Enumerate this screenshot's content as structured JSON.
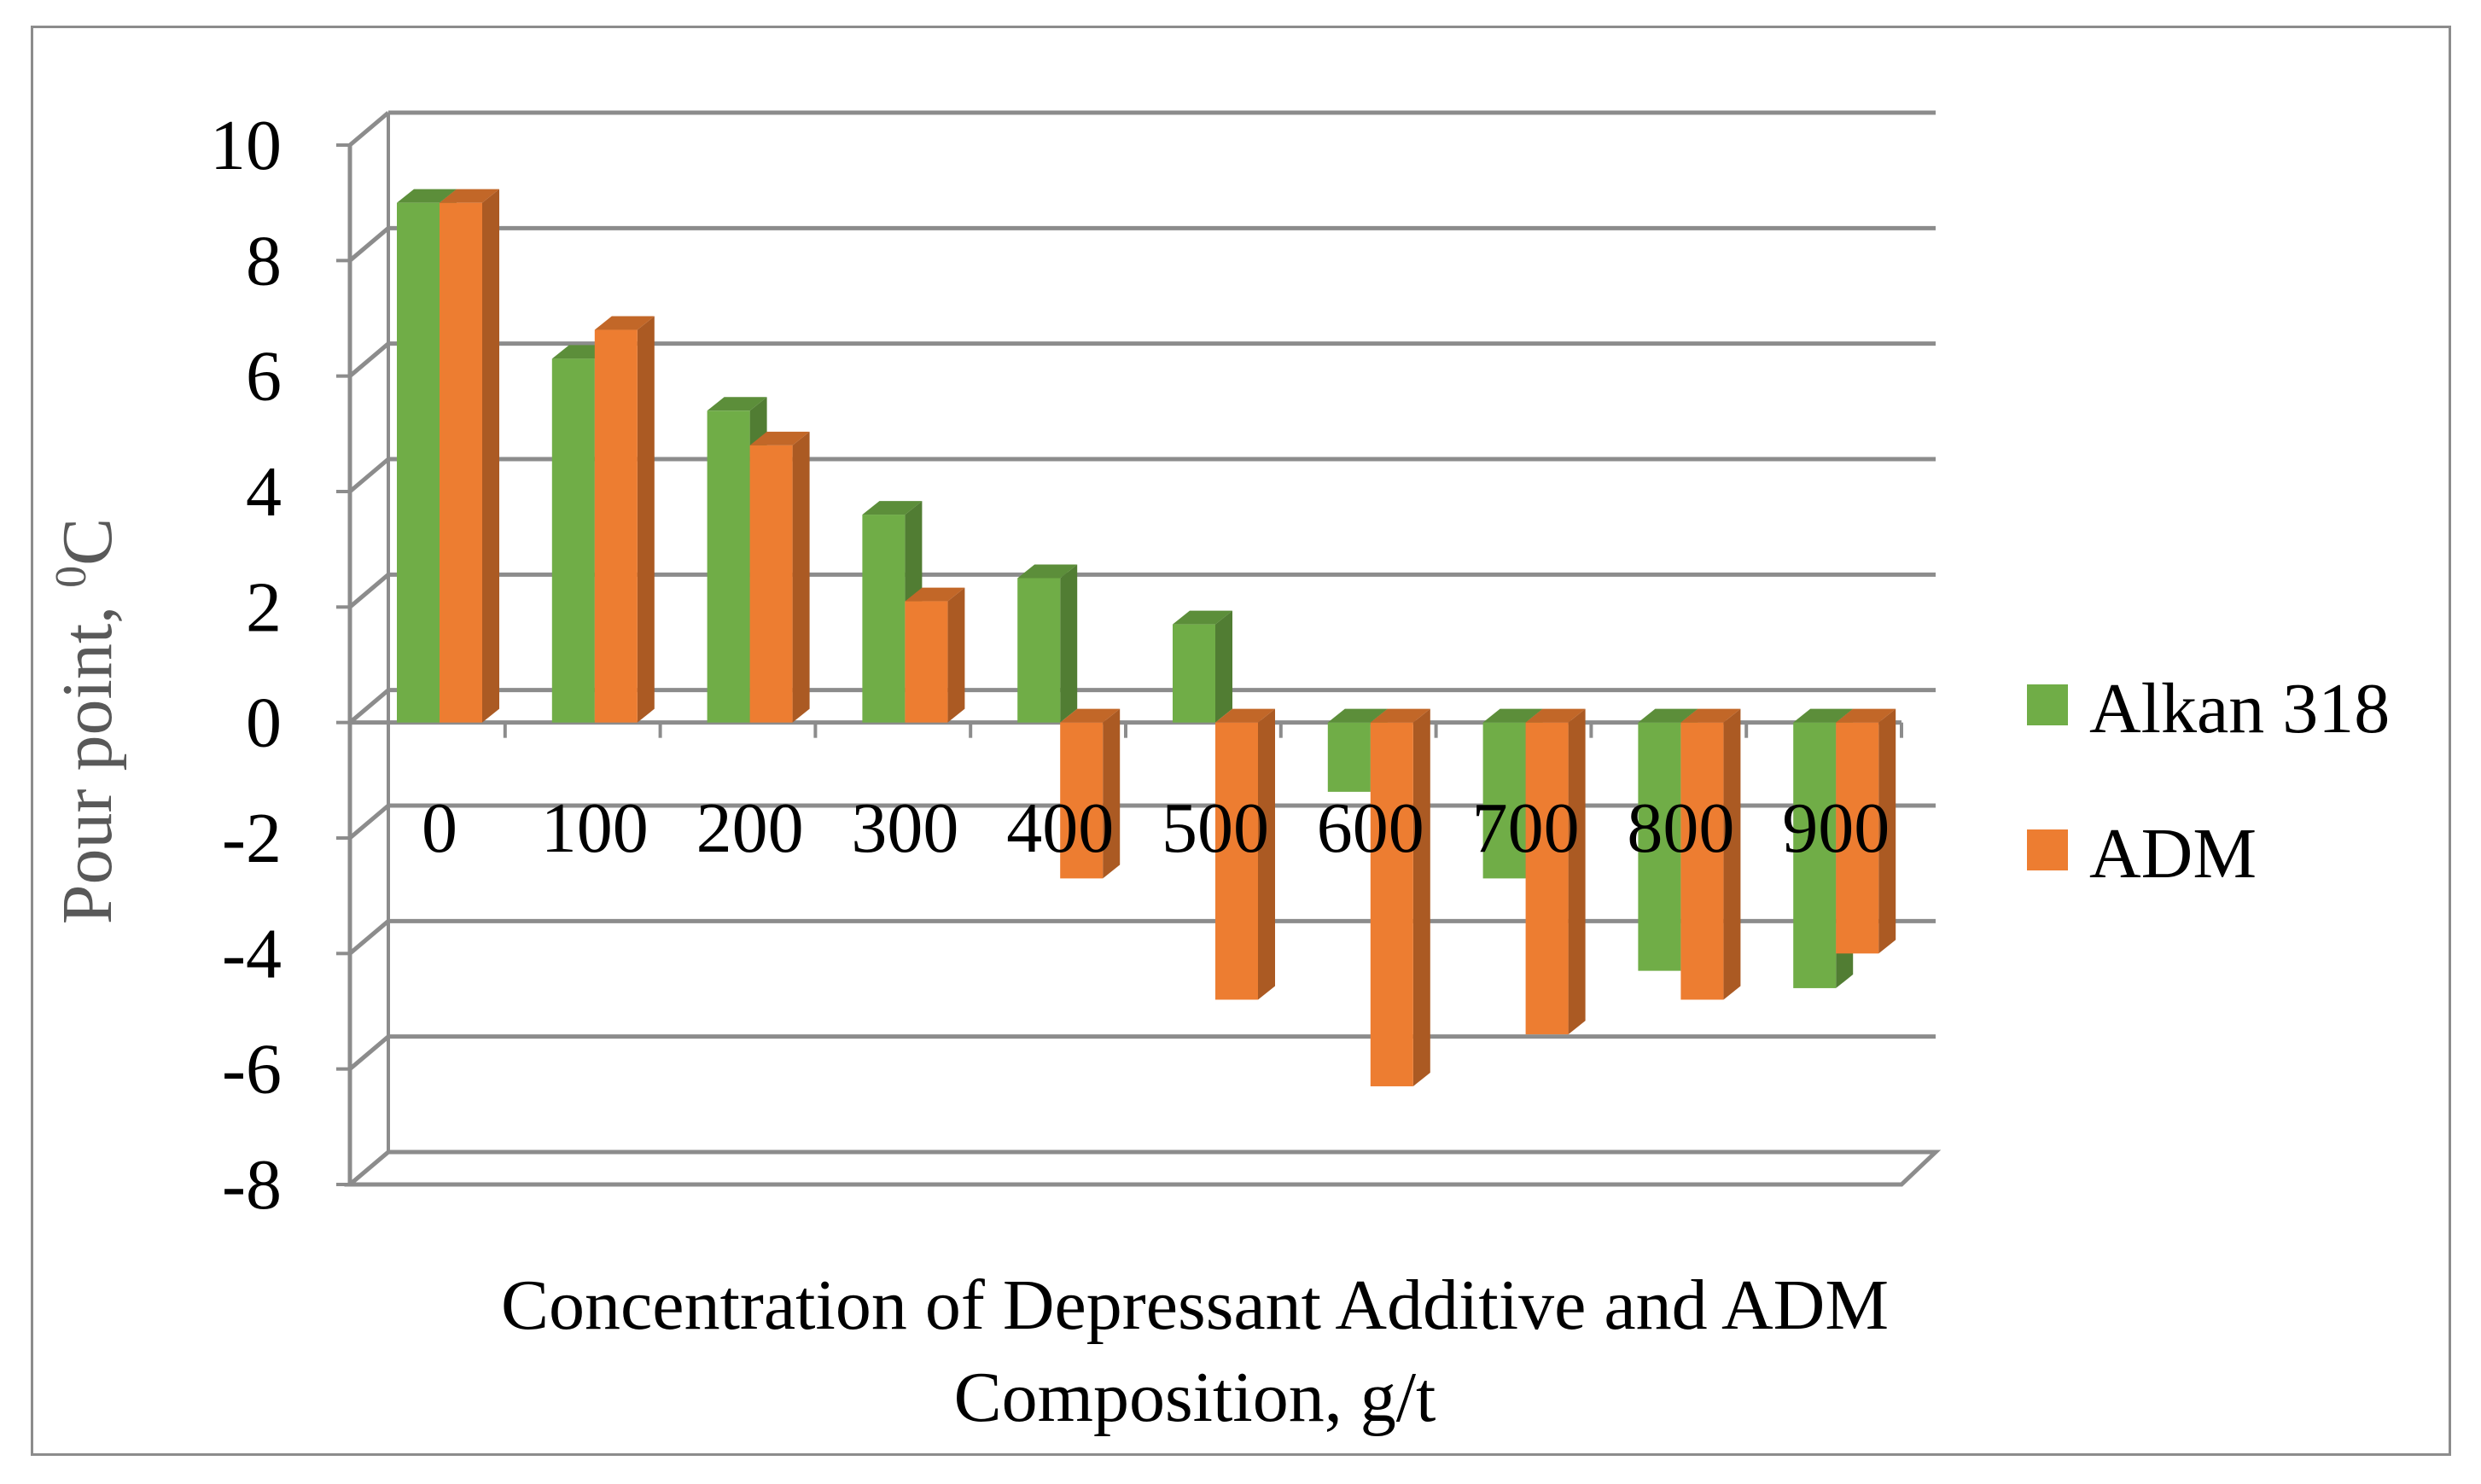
{
  "chart_data": {
    "type": "bar",
    "title": "",
    "categories": [
      "0",
      "100",
      "200",
      "300",
      "400",
      "500",
      "600",
      "700",
      "800",
      "900"
    ],
    "series": [
      {
        "name": "Alkan 318",
        "color": "#70ad47",
        "values": [
          9,
          6.3,
          5.4,
          3.6,
          2.5,
          1.7,
          -1.2,
          -2.7,
          -4.3,
          -4.6
        ]
      },
      {
        "name": "ADM",
        "color": "#ed7d31",
        "values": [
          9,
          6.8,
          4.8,
          2.1,
          -2.7,
          -4.8,
          -6.3,
          -5.4,
          -4.8,
          -4.0
        ]
      }
    ],
    "xlabel": "Concentration of Depressant Additive and ADM Composition, g/t",
    "xlabel_lines": [
      "Concentration of Depressant Additive and ADM",
      "Composition, g/t"
    ],
    "ylabel": "Pour point, 0C",
    "ylabel_main": "Pour point, ",
    "ylabel_sup": "0",
    "ylabel_unit": "C",
    "ylim": [
      -8,
      10
    ],
    "yticks": [
      "10",
      "8",
      "6",
      "4",
      "2",
      "0",
      "-2",
      "-4",
      "-6",
      "-8"
    ],
    "grid": true,
    "legend_position": "right"
  }
}
